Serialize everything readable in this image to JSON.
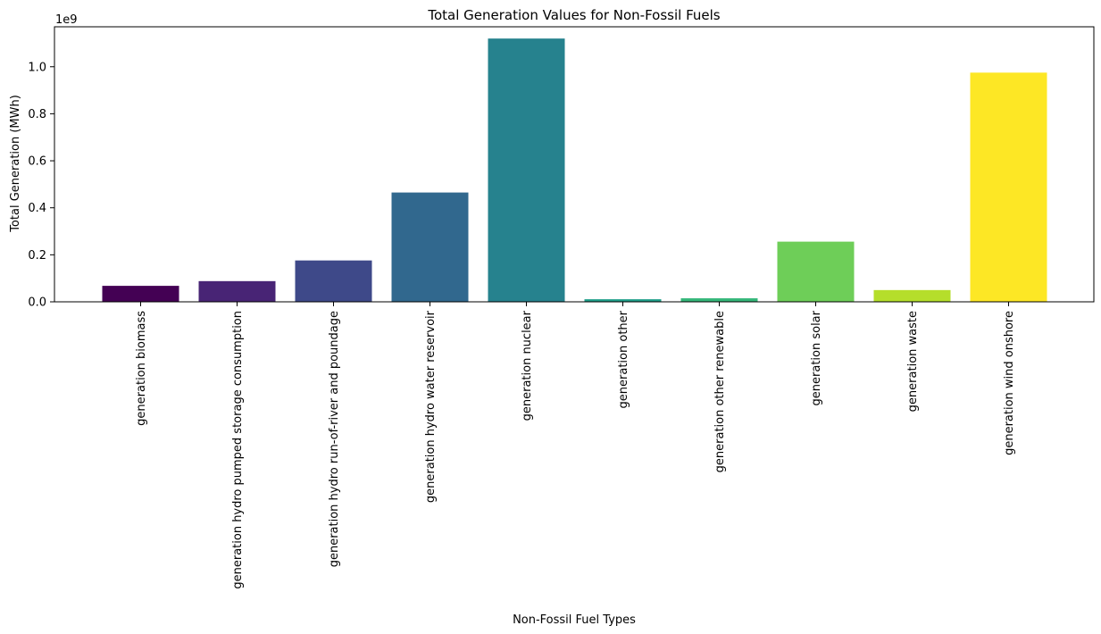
{
  "chart_data": {
    "type": "bar",
    "title": "Total Generation Values for Non-Fossil Fuels",
    "xlabel": "Non-Fossil Fuel Types",
    "ylabel": "Total Generation (MWh)",
    "offset_label": "1e9",
    "ylim": [
      0,
      1.17
    ],
    "y_scale_factor": 1000000000.0,
    "yticks": [
      0.0,
      0.2,
      0.4,
      0.6,
      0.8,
      1.0
    ],
    "ytick_labels": [
      "0.0",
      "0.2",
      "0.4",
      "0.6",
      "0.8",
      "1.0"
    ],
    "grid": false,
    "categories": [
      "generation biomass",
      "generation hydro pumped storage consumption",
      "generation hydro run-of-river and poundage",
      "generation hydro water reservoir",
      "generation nuclear",
      "generation other",
      "generation other renewable",
      "generation solar",
      "generation waste",
      "generation wind onshore"
    ],
    "values": [
      0.068,
      0.088,
      0.176,
      0.465,
      1.12,
      0.011,
      0.015,
      0.256,
      0.05,
      0.975
    ],
    "colors": [
      "#440154",
      "#482475",
      "#414487",
      "#355f8d",
      "#2a788e",
      "#21918c",
      "#22a884",
      "#44bf70",
      "#7ad151",
      "#bddf26",
      "#fde725"
    ],
    "bar_colors": [
      "#440154",
      "#482475",
      "#3e4989",
      "#31688e",
      "#26828e",
      "#1f9e89",
      "#35b779",
      "#6ece58",
      "#b5de2b",
      "#fde725"
    ]
  }
}
